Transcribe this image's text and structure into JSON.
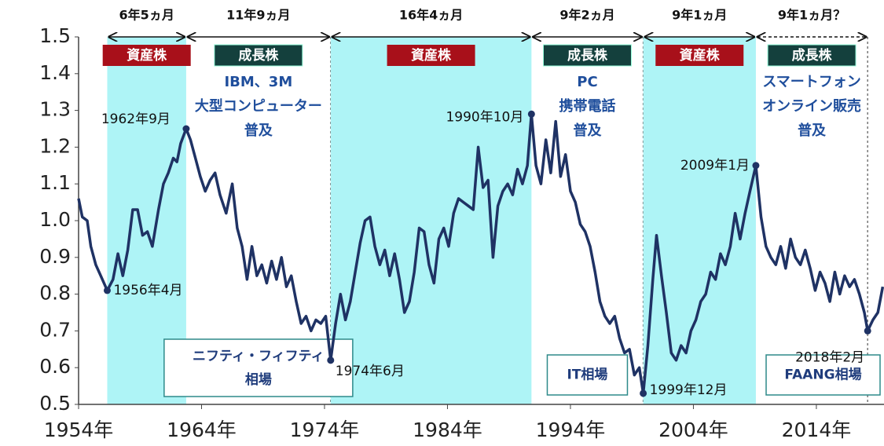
{
  "chart_data": {
    "type": "line",
    "color": "#1f3264",
    "xlim": [
      1954,
      2019.5
    ],
    "ylim": [
      0.5,
      1.5
    ],
    "xticks": [
      {
        "value": 1954,
        "label": "1954年"
      },
      {
        "value": 1964,
        "label": "1964年"
      },
      {
        "value": 1974,
        "label": "1974年"
      },
      {
        "value": 1984,
        "label": "1984年"
      },
      {
        "value": 1994,
        "label": "1994年"
      },
      {
        "value": 2004,
        "label": "2004年"
      },
      {
        "value": 2014,
        "label": "2014年"
      }
    ],
    "yticks": [
      0.5,
      0.6,
      0.7,
      0.8,
      0.9,
      {
        "value": 1.0,
        "label": "1.0"
      },
      1.1,
      1.2,
      1.3,
      1.4,
      1.5
    ],
    "x": [
      1954.0,
      1954.3,
      1954.7,
      1955.0,
      1955.4,
      1955.8,
      1956.33,
      1956.8,
      1957.2,
      1957.6,
      1958.0,
      1958.4,
      1958.8,
      1959.2,
      1959.6,
      1960.0,
      1960.5,
      1960.9,
      1961.3,
      1961.7,
      1962.0,
      1962.3,
      1962.75,
      1963.1,
      1963.5,
      1963.9,
      1964.3,
      1964.7,
      1965.1,
      1965.5,
      1966.0,
      1966.5,
      1966.9,
      1967.3,
      1967.7,
      1968.1,
      1968.5,
      1968.9,
      1969.3,
      1969.7,
      1970.1,
      1970.5,
      1970.9,
      1971.3,
      1971.7,
      1972.1,
      1972.5,
      1972.9,
      1973.3,
      1973.7,
      1974.1,
      1974.5,
      1974.9,
      1975.3,
      1975.7,
      1976.1,
      1976.5,
      1976.9,
      1977.3,
      1977.7,
      1978.1,
      1978.5,
      1978.9,
      1979.3,
      1979.7,
      1980.1,
      1980.5,
      1980.9,
      1981.3,
      1981.7,
      1982.1,
      1982.5,
      1982.9,
      1983.3,
      1983.7,
      1984.1,
      1984.5,
      1984.9,
      1985.3,
      1985.7,
      1986.1,
      1986.5,
      1986.9,
      1987.3,
      1987.7,
      1988.1,
      1988.5,
      1988.9,
      1989.3,
      1989.7,
      1990.1,
      1990.5,
      1990.83,
      1991.2,
      1991.6,
      1992.0,
      1992.4,
      1992.8,
      1993.2,
      1993.6,
      1994.0,
      1994.4,
      1994.8,
      1995.2,
      1995.6,
      1996.0,
      1996.4,
      1996.8,
      1997.2,
      1997.6,
      1998.0,
      1998.4,
      1998.8,
      1999.2,
      1999.6,
      1999.92,
      2000.3,
      2000.7,
      2001.0,
      2001.4,
      2001.8,
      2002.2,
      2002.6,
      2003.0,
      2003.4,
      2003.8,
      2004.2,
      2004.6,
      2005.0,
      2005.4,
      2005.8,
      2006.2,
      2006.6,
      2007.0,
      2007.4,
      2007.8,
      2008.2,
      2008.6,
      2009.08,
      2009.5,
      2009.9,
      2010.3,
      2010.7,
      2011.1,
      2011.5,
      2011.9,
      2012.3,
      2012.7,
      2013.1,
      2013.5,
      2013.9,
      2014.3,
      2014.7,
      2015.1,
      2015.5,
      2015.9,
      2016.3,
      2016.7,
      2017.1,
      2017.5,
      2017.9,
      2018.17,
      2018.6,
      2019.0,
      2019.4
    ],
    "values": [
      1.06,
      1.01,
      1.0,
      0.93,
      0.88,
      0.85,
      0.81,
      0.84,
      0.91,
      0.85,
      0.92,
      1.03,
      1.03,
      0.96,
      0.97,
      0.93,
      1.03,
      1.1,
      1.13,
      1.17,
      1.16,
      1.21,
      1.25,
      1.22,
      1.17,
      1.12,
      1.08,
      1.11,
      1.13,
      1.07,
      1.02,
      1.1,
      0.98,
      0.93,
      0.84,
      0.93,
      0.85,
      0.88,
      0.83,
      0.89,
      0.84,
      0.9,
      0.82,
      0.85,
      0.78,
      0.72,
      0.74,
      0.7,
      0.73,
      0.72,
      0.74,
      0.62,
      0.72,
      0.8,
      0.73,
      0.78,
      0.86,
      0.94,
      1.0,
      1.01,
      0.93,
      0.88,
      0.92,
      0.85,
      0.91,
      0.84,
      0.75,
      0.78,
      0.86,
      0.98,
      0.97,
      0.88,
      0.83,
      0.95,
      0.98,
      0.93,
      1.02,
      1.06,
      1.05,
      1.04,
      1.03,
      1.2,
      1.09,
      1.11,
      0.9,
      1.04,
      1.08,
      1.1,
      1.07,
      1.14,
      1.1,
      1.15,
      1.29,
      1.15,
      1.1,
      1.22,
      1.13,
      1.27,
      1.12,
      1.18,
      1.08,
      1.05,
      0.99,
      0.97,
      0.93,
      0.86,
      0.78,
      0.74,
      0.72,
      0.74,
      0.68,
      0.64,
      0.65,
      0.58,
      0.6,
      0.53,
      0.66,
      0.84,
      0.96,
      0.85,
      0.75,
      0.64,
      0.62,
      0.66,
      0.64,
      0.7,
      0.73,
      0.78,
      0.8,
      0.86,
      0.84,
      0.91,
      0.88,
      0.93,
      1.02,
      0.95,
      1.02,
      1.08,
      1.15,
      1.01,
      0.93,
      0.9,
      0.88,
      0.93,
      0.87,
      0.95,
      0.9,
      0.88,
      0.92,
      0.87,
      0.81,
      0.86,
      0.83,
      0.78,
      0.86,
      0.8,
      0.85,
      0.82,
      0.84,
      0.8,
      0.75,
      0.7,
      0.73,
      0.75,
      0.82
    ],
    "periods": [
      {
        "start": 1956.33,
        "end": 1962.75,
        "duration": "6年5ヵ月",
        "kind": "資産株",
        "shaded": true
      },
      {
        "start": 1962.75,
        "end": 1974.5,
        "duration": "11年9ヵ月",
        "kind": "成長株",
        "description": [
          "IBM、3M",
          "大型コンピューター",
          "普及"
        ],
        "boom": [
          "ニフティ・フィフティ",
          "相場"
        ]
      },
      {
        "start": 1974.5,
        "end": 1990.83,
        "duration": "16年4ヵ月",
        "kind": "資産株",
        "shaded": true
      },
      {
        "start": 1990.83,
        "end": 1999.92,
        "duration": "9年2ヵ月",
        "kind": "成長株",
        "description": [
          "PC",
          "携帯電話",
          "普及"
        ],
        "boom": [
          "IT相場"
        ]
      },
      {
        "start": 1999.92,
        "end": 2009.08,
        "duration": "9年1ヵ月",
        "kind": "資産株",
        "shaded": true
      },
      {
        "start": 2009.08,
        "end": 2018.17,
        "duration": "9年1ヵ月？",
        "kind": "成長株",
        "description": [
          "スマートフォン",
          "オンライン販売",
          "普及"
        ],
        "boom": [
          "FAANG相場"
        ],
        "dashed": true
      }
    ],
    "points": [
      {
        "label": "1962年9月",
        "x": 1962.75,
        "y": 1.25
      },
      {
        "label": "1956年4月",
        "x": 1956.33,
        "y": 0.81
      },
      {
        "label": "1974年6月",
        "x": 1974.5,
        "y": 0.62
      },
      {
        "label": "1990年10月",
        "x": 1990.83,
        "y": 1.29
      },
      {
        "label": "1999年12月",
        "x": 1999.92,
        "y": 0.53
      },
      {
        "label": "2009年1月",
        "x": 2009.08,
        "y": 1.15
      },
      {
        "label": "2018年2月",
        "x": 2018.17,
        "y": 0.7
      }
    ]
  }
}
